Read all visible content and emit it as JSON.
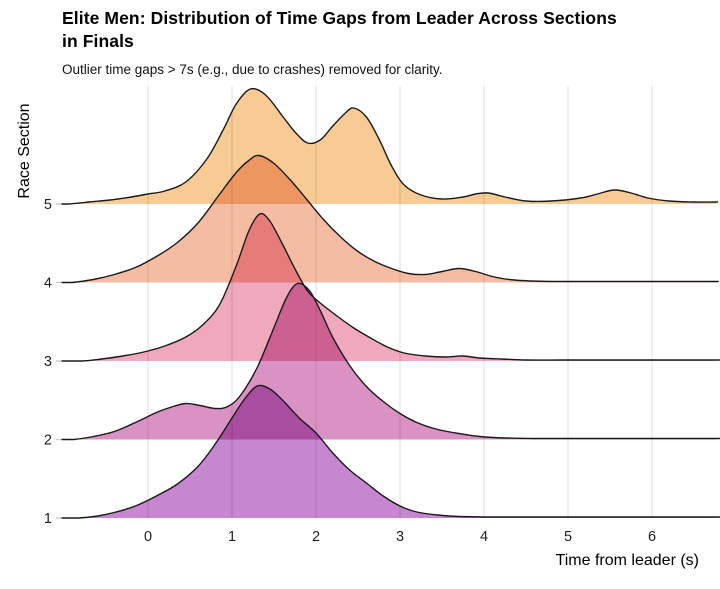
{
  "header": {
    "title_lines": [
      "Elite Men: Distribution of Time Gaps from Leader Across Sections",
      "in Finals"
    ],
    "subtitle": "Outlier time gaps > 7s (e.g., due to crashes) removed for clarity."
  },
  "chart_data": {
    "type": "area",
    "variant": "ridgeline-density",
    "title": "Elite Men: Distribution of Time Gaps from Leader Across Sections in Finals",
    "subtitle": "Outlier time gaps > 7s (e.g., due to crashes) removed for clarity.",
    "xlabel": "Time from leader (s)",
    "ylabel": "Race Section",
    "x_ticks": [
      "0",
      "1",
      "2",
      "3",
      "4",
      "5",
      "6"
    ],
    "x_tick_values": [
      0,
      1,
      2,
      3,
      4,
      5,
      6
    ],
    "x_range": [
      -1.02,
      6.76
    ],
    "grid": true,
    "legend": false,
    "grid_color": "#E6E6E6",
    "stroke_color": "#1A1A1A",
    "background_color": "#FFFFFF",
    "sections": [
      {
        "label": "5",
        "fill": "#F7CB93",
        "peaks_s": [
          1.22,
          2.43
        ],
        "density": [
          [
            -0.95,
            0
          ],
          [
            -0.7,
            2
          ],
          [
            -0.45,
            4
          ],
          [
            -0.2,
            7
          ],
          [
            0,
            10
          ],
          [
            0.2,
            13
          ],
          [
            0.45,
            22
          ],
          [
            0.7,
            45
          ],
          [
            0.9,
            75
          ],
          [
            1.05,
            100
          ],
          [
            1.22,
            115
          ],
          [
            1.4,
            109
          ],
          [
            1.6,
            88
          ],
          [
            1.75,
            72
          ],
          [
            1.9,
            61
          ],
          [
            2.05,
            64
          ],
          [
            2.2,
            78
          ],
          [
            2.35,
            91
          ],
          [
            2.45,
            96
          ],
          [
            2.6,
            87
          ],
          [
            2.75,
            65
          ],
          [
            2.9,
            38
          ],
          [
            3.05,
            19
          ],
          [
            3.25,
            9
          ],
          [
            3.5,
            5
          ],
          [
            3.75,
            7
          ],
          [
            3.9,
            10
          ],
          [
            4.05,
            11
          ],
          [
            4.25,
            7
          ],
          [
            4.5,
            3
          ],
          [
            4.8,
            3
          ],
          [
            5.15,
            6
          ],
          [
            5.35,
            10
          ],
          [
            5.55,
            14
          ],
          [
            5.75,
            11
          ],
          [
            5.95,
            6
          ],
          [
            6.2,
            3
          ],
          [
            6.5,
            2
          ],
          [
            6.76,
            2
          ]
        ]
      },
      {
        "label": "4",
        "fill": "#F5BCA4",
        "peaks_s": [
          1.32
        ],
        "density": [
          [
            -0.9,
            0
          ],
          [
            -0.65,
            3
          ],
          [
            -0.4,
            8
          ],
          [
            -0.15,
            15
          ],
          [
            0.1,
            26
          ],
          [
            0.35,
            40
          ],
          [
            0.6,
            60
          ],
          [
            0.85,
            88
          ],
          [
            1.05,
            110
          ],
          [
            1.2,
            122
          ],
          [
            1.32,
            127
          ],
          [
            1.5,
            119
          ],
          [
            1.7,
            102
          ],
          [
            1.9,
            82
          ],
          [
            2.1,
            62
          ],
          [
            2.3,
            45
          ],
          [
            2.5,
            31
          ],
          [
            2.7,
            21
          ],
          [
            2.9,
            14
          ],
          [
            3.1,
            9
          ],
          [
            3.3,
            8
          ],
          [
            3.5,
            11
          ],
          [
            3.7,
            14
          ],
          [
            3.9,
            11
          ],
          [
            4.1,
            6
          ],
          [
            4.3,
            3
          ],
          [
            4.55,
            1.5
          ],
          [
            4.8,
            1
          ],
          [
            5.2,
            1
          ],
          [
            5.8,
            1
          ],
          [
            6.4,
            1
          ],
          [
            6.76,
            1
          ]
        ]
      },
      {
        "label": "3",
        "fill": "#F0A8BC",
        "peaks_s": [
          1.33
        ],
        "density": [
          [
            -0.78,
            0
          ],
          [
            -0.55,
            2
          ],
          [
            -0.3,
            5
          ],
          [
            -0.05,
            9
          ],
          [
            0.2,
            15
          ],
          [
            0.45,
            24
          ],
          [
            0.65,
            36
          ],
          [
            0.85,
            56
          ],
          [
            1.05,
            95
          ],
          [
            1.2,
            130
          ],
          [
            1.33,
            147
          ],
          [
            1.45,
            140
          ],
          [
            1.6,
            117
          ],
          [
            1.75,
            92
          ],
          [
            1.9,
            70
          ],
          [
            2.05,
            58
          ],
          [
            2.25,
            45
          ],
          [
            2.45,
            33
          ],
          [
            2.65,
            23
          ],
          [
            2.85,
            14
          ],
          [
            3.05,
            8
          ],
          [
            3.3,
            5
          ],
          [
            3.55,
            4
          ],
          [
            3.75,
            5
          ],
          [
            3.95,
            3
          ],
          [
            4.2,
            2
          ],
          [
            4.5,
            1
          ],
          [
            5,
            1
          ],
          [
            5.8,
            1
          ],
          [
            6.76,
            1
          ]
        ]
      },
      {
        "label": "2",
        "fill": "#D992C3",
        "peaks_s": [
          0.45,
          1.78
        ],
        "density": [
          [
            -0.88,
            0
          ],
          [
            -0.65,
            3
          ],
          [
            -0.4,
            8
          ],
          [
            -0.15,
            17
          ],
          [
            0.1,
            27
          ],
          [
            0.3,
            33
          ],
          [
            0.45,
            36
          ],
          [
            0.62,
            34
          ],
          [
            0.8,
            31
          ],
          [
            0.95,
            33
          ],
          [
            1.1,
            44
          ],
          [
            1.3,
            72
          ],
          [
            1.5,
            112
          ],
          [
            1.65,
            142
          ],
          [
            1.78,
            156
          ],
          [
            1.92,
            149
          ],
          [
            2.05,
            129
          ],
          [
            2.2,
            102
          ],
          [
            2.4,
            74
          ],
          [
            2.6,
            53
          ],
          [
            2.8,
            38
          ],
          [
            3,
            26
          ],
          [
            3.2,
            17
          ],
          [
            3.45,
            10
          ],
          [
            3.7,
            6
          ],
          [
            3.95,
            3
          ],
          [
            4.25,
            1.5
          ],
          [
            4.6,
            1
          ],
          [
            5.1,
            1
          ],
          [
            5.8,
            1
          ],
          [
            6.76,
            1
          ]
        ]
      },
      {
        "label": "1",
        "fill": "#C687D0",
        "peaks_s": [
          1.3
        ],
        "density": [
          [
            -0.82,
            0
          ],
          [
            -0.6,
            2
          ],
          [
            -0.38,
            6
          ],
          [
            -0.15,
            12
          ],
          [
            0.1,
            22
          ],
          [
            0.35,
            34
          ],
          [
            0.6,
            52
          ],
          [
            0.8,
            74
          ],
          [
            1,
            100
          ],
          [
            1.15,
            119
          ],
          [
            1.3,
            132
          ],
          [
            1.45,
            129
          ],
          [
            1.6,
            118
          ],
          [
            1.8,
            100
          ],
          [
            2,
            85
          ],
          [
            2.2,
            65
          ],
          [
            2.4,
            48
          ],
          [
            2.6,
            35
          ],
          [
            2.8,
            22
          ],
          [
            3,
            12
          ],
          [
            3.2,
            6
          ],
          [
            3.45,
            3
          ],
          [
            3.7,
            1.5
          ],
          [
            4,
            1
          ],
          [
            4.5,
            1
          ],
          [
            5.2,
            1
          ],
          [
            6.76,
            1
          ]
        ]
      }
    ],
    "density_note": "density arrays are [time_from_leader_s, relative_density_height] pairs; heights share one common scale across all five sections"
  }
}
